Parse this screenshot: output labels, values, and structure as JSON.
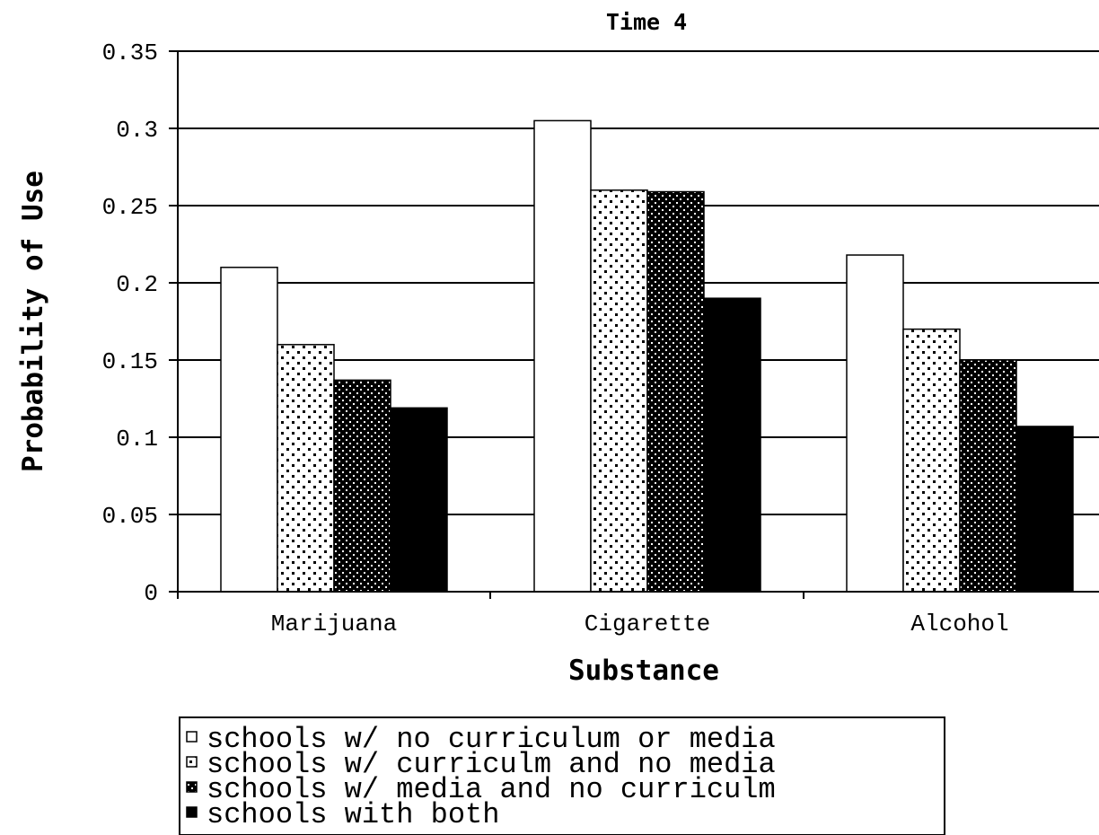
{
  "chart_data": {
    "type": "bar",
    "title": "Time 4",
    "xlabel": "Substance",
    "ylabel": "Probability of Use",
    "categories": [
      "Marijuana",
      "Cigarette",
      "Alcohol"
    ],
    "series": [
      {
        "name": "schools w/ no curriculum or media",
        "values": [
          0.21,
          0.305,
          0.218
        ],
        "pattern": "white"
      },
      {
        "name": "schools w/ curriculm and no media",
        "values": [
          0.16,
          0.26,
          0.17
        ],
        "pattern": "light-dots"
      },
      {
        "name": "schools w/ media and no curriculm",
        "values": [
          0.137,
          0.259,
          0.15
        ],
        "pattern": "dense-dots"
      },
      {
        "name": "schools with both",
        "values": [
          0.119,
          0.19,
          0.107
        ],
        "pattern": "black"
      }
    ],
    "ylim": [
      0,
      0.35
    ],
    "yticks": [
      "0",
      "0.05",
      "0.1",
      "0.15",
      "0.2",
      "0.25",
      "0.3",
      "0.35"
    ],
    "grid": true,
    "legend_position": "bottom-center"
  }
}
